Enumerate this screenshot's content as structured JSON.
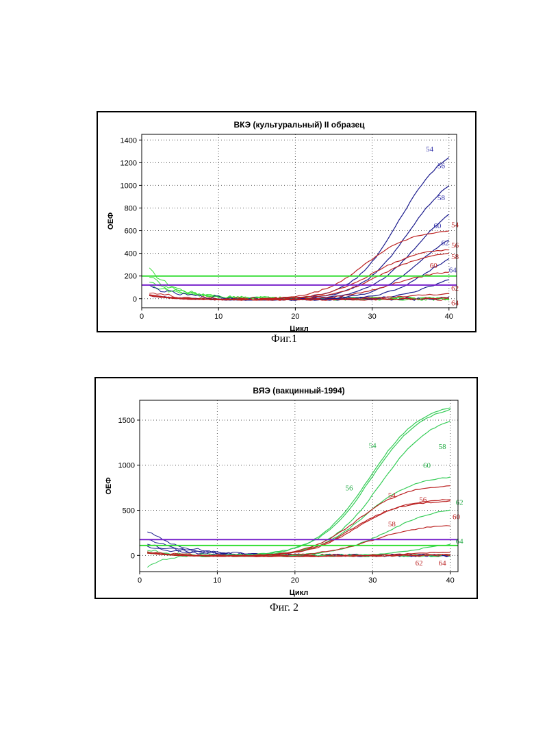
{
  "figures": [
    {
      "caption": "Фиг.1",
      "chart_data": {
        "type": "line",
        "title": "ВКЭ (культуральный) II образец",
        "xlabel": "Цикл",
        "ylabel": "ОЕФ",
        "xlim": [
          0,
          41
        ],
        "ylim": [
          -80,
          1450
        ],
        "xticks": [
          0,
          10,
          20,
          30,
          40
        ],
        "yticks": [
          0,
          200,
          400,
          600,
          800,
          1000,
          1200,
          1400
        ],
        "grid": true,
        "thresholds": [
          {
            "value": 200,
            "color": "#33dd33"
          },
          {
            "value": 120,
            "color": "#7722cc"
          }
        ],
        "series": [
          {
            "name": "54",
            "color": "#1a1a8c",
            "label_color": "#3333aa",
            "plateau": 1400,
            "midpoint": 33.5,
            "slope": 0.33,
            "label_at": [
              37,
              1300
            ]
          },
          {
            "name": "56",
            "color": "#1a1a8c",
            "label_color": "#3333aa",
            "plateau": 1200,
            "midpoint": 34.8,
            "slope": 0.32,
            "label_at": [
              38.5,
              1150
            ]
          },
          {
            "name": "58",
            "color": "#1a1a8c",
            "label_color": "#3333aa",
            "plateau": 950,
            "midpoint": 35.8,
            "slope": 0.32,
            "label_at": [
              38.5,
              870
            ]
          },
          {
            "name": "60",
            "color": "#1a1a8c",
            "label_color": "#3333aa",
            "plateau": 700,
            "midpoint": 36.5,
            "slope": 0.33,
            "label_at": [
              38,
              620
            ]
          },
          {
            "name": "62",
            "color": "#1a1a8c",
            "label_color": "#3333aa",
            "plateau": 500,
            "midpoint": 37.3,
            "slope": 0.35,
            "label_at": [
              39,
              470
            ]
          },
          {
            "name": "64",
            "color": "#1a1a8c",
            "label_color": "#3333aa",
            "plateau": 300,
            "midpoint": 38.8,
            "slope": 0.35,
            "label_at": [
              40,
              230
            ]
          },
          {
            "name": "54",
            "color": "#bb2222",
            "label_color": "#bb2222",
            "plateau": 620,
            "midpoint": 29.0,
            "slope": 0.33,
            "label_at": [
              40.3,
              630
            ]
          },
          {
            "name": "56",
            "color": "#bb2222",
            "label_color": "#bb2222",
            "plateau": 460,
            "midpoint": 30.0,
            "slope": 0.32,
            "label_at": [
              40.3,
              450
            ]
          },
          {
            "name": "58",
            "color": "#bb2222",
            "label_color": "#bb2222",
            "plateau": 430,
            "midpoint": 31.0,
            "slope": 0.32,
            "label_at": [
              40.3,
              350
            ]
          },
          {
            "name": "60",
            "color": "#bb2222",
            "label_color": "#bb2222",
            "plateau": 270,
            "midpoint": 32.5,
            "slope": 0.3,
            "label_at": [
              37.5,
              270
            ]
          },
          {
            "name": "62",
            "color": "#bb2222",
            "label_color": "#bb2222",
            "plateau": 60,
            "midpoint": 34.0,
            "slope": 0.3,
            "label_at": [
              40.3,
              70
            ]
          },
          {
            "name": "64",
            "color": "#bb2222",
            "label_color": "#bb2222",
            "plateau": 20,
            "midpoint": 36.0,
            "slope": 0.3,
            "label_at": [
              40.3,
              -60
            ]
          }
        ],
        "noise_series": [
          {
            "color": "#33dd33",
            "start": 260,
            "decay": 3.5
          },
          {
            "color": "#33dd33",
            "start": 200,
            "decay": 4.0
          },
          {
            "color": "#33dd33",
            "start": 150,
            "decay": 4.5
          },
          {
            "color": "#33dd33",
            "start": 120,
            "decay": 5.0
          },
          {
            "color": "#1a1a8c",
            "start": 110,
            "decay": 4.0
          },
          {
            "color": "#bb2222",
            "start": 60,
            "decay": 3.0
          }
        ]
      }
    },
    {
      "caption": "Фиг. 2",
      "chart_data": {
        "type": "line",
        "title": "ВЯЭ (вакцинный-1994)",
        "xlabel": "Цикл",
        "ylabel": "ОЕФ",
        "xlim": [
          0,
          41
        ],
        "ylim": [
          -180,
          1720
        ],
        "xticks": [
          0,
          10,
          20,
          30,
          40
        ],
        "yticks": [
          0,
          500,
          1000,
          1500
        ],
        "grid": true,
        "thresholds": [
          {
            "value": 175,
            "color": "#7722cc"
          },
          {
            "value": 110,
            "color": "#33dd33"
          }
        ],
        "series": [
          {
            "name": "54",
            "color": "#33cc55",
            "label_color": "#22aa44",
            "plateau": 1720,
            "midpoint": 29.5,
            "slope": 0.3,
            "label_at": [
              29.5,
              1190
            ]
          },
          {
            "name": "56",
            "color": "#33cc55",
            "label_color": "#22aa44",
            "plateau": 1700,
            "midpoint": 29.7,
            "slope": 0.3,
            "label_at": [
              26.5,
              720
            ]
          },
          {
            "name": "58",
            "color": "#33cc55",
            "label_color": "#22aa44",
            "plateau": 1600,
            "midpoint": 31.0,
            "slope": 0.3,
            "label_at": [
              38.5,
              1180
            ]
          },
          {
            "name": "60",
            "color": "#33cc55",
            "label_color": "#22aa44",
            "plateau": 900,
            "midpoint": 29.0,
            "slope": 0.32,
            "label_at": [
              36.5,
              970
            ]
          },
          {
            "name": "62",
            "color": "#33cc55",
            "label_color": "#22aa44",
            "plateau": 560,
            "midpoint": 32.0,
            "slope": 0.3,
            "label_at": [
              40.7,
              560
            ]
          },
          {
            "name": "64",
            "color": "#33cc55",
            "label_color": "#22aa44",
            "plateau": 160,
            "midpoint": 36.0,
            "slope": 0.35,
            "label_at": [
              40.7,
              130
            ]
          },
          {
            "name": "54",
            "color": "#bb2222",
            "label_color": "#bb2222",
            "plateau": 800,
            "midpoint": 28.0,
            "slope": 0.32,
            "label_at": [
              32,
              640
            ]
          },
          {
            "name": "56",
            "color": "#bb2222",
            "label_color": "#bb2222",
            "plateau": 620,
            "midpoint": 27.5,
            "slope": 0.33,
            "label_at": [
              36,
              590
            ]
          },
          {
            "name": "58",
            "color": "#bb2222",
            "label_color": "#bb2222",
            "plateau": 640,
            "midpoint": 28.0,
            "slope": 0.33,
            "label_at": [
              32,
              320
            ]
          },
          {
            "name": "60",
            "color": "#bb2222",
            "label_color": "#bb2222",
            "plateau": 360,
            "midpoint": 30.0,
            "slope": 0.3,
            "label_at": [
              40.3,
              400
            ]
          },
          {
            "name": "62",
            "color": "#bb2222",
            "label_color": "#bb2222",
            "plateau": 50,
            "midpoint": 34.0,
            "slope": 0.3,
            "label_at": [
              35.5,
              -110
            ]
          },
          {
            "name": "64",
            "color": "#bb2222",
            "label_color": "#bb2222",
            "plateau": 30,
            "midpoint": 36.0,
            "slope": 0.3,
            "label_at": [
              38.5,
              -110
            ]
          }
        ],
        "noise_series": [
          {
            "color": "#1a1a8c",
            "start": 270,
            "decay": 4.5
          },
          {
            "color": "#1a1a8c",
            "start": 180,
            "decay": 5.0
          },
          {
            "color": "#1a1a8c",
            "start": 120,
            "decay": 5.5
          },
          {
            "color": "#1a1a8c",
            "start": 90,
            "decay": 5.0
          },
          {
            "color": "#33cc55",
            "start": -120,
            "decay": 2.5
          },
          {
            "color": "#33cc55",
            "start": 60,
            "decay": 3.5
          },
          {
            "color": "#bb2222",
            "start": 40,
            "decay": 3.0
          }
        ]
      }
    }
  ]
}
